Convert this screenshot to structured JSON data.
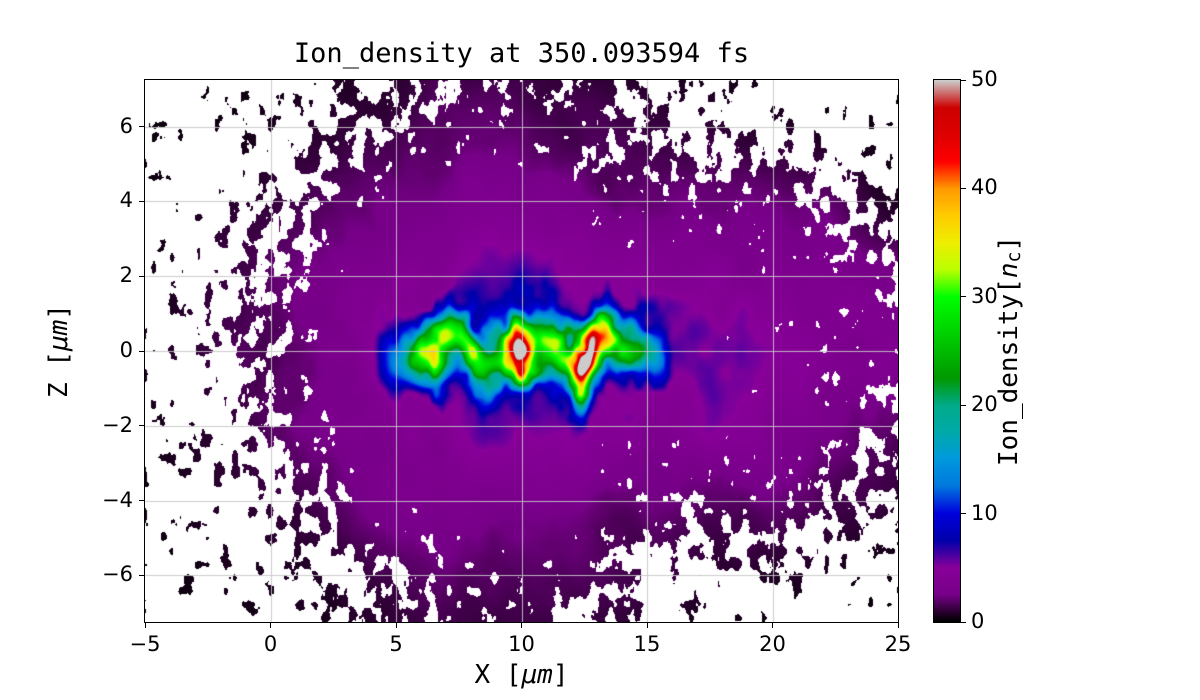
{
  "figure": {
    "title": "Ion_density at 350.093594 fs",
    "background_color": "#ffffff"
  },
  "axes": {
    "xlabel": {
      "pre": "X [",
      "mu": "μm",
      "post": "]"
    },
    "ylabel": {
      "pre": "Z [",
      "mu": "μm",
      "post": "]"
    }
  },
  "colorbar": {
    "label": {
      "pre": "Ion_density[",
      "var": "n",
      "sub": "c",
      "post": "]"
    },
    "min": 0,
    "max": 50,
    "ticks": [
      0,
      10,
      20,
      30,
      40,
      50
    ]
  },
  "chart_data": {
    "type": "heatmap",
    "title": "Ion_density at 350.093594 fs",
    "xlabel": "X [μm]",
    "ylabel": "Z [μm]",
    "colorbar_label": "Ion_density[n_c]",
    "xlim": [
      -5,
      25
    ],
    "ylim": [
      -7.25,
      7.25
    ],
    "xticks": [
      -5,
      0,
      5,
      10,
      15,
      20,
      25
    ],
    "yticks": [
      -6,
      -4,
      -2,
      0,
      2,
      4,
      6
    ],
    "grid": true,
    "grid_color": "#c8c8c8",
    "vmin": 0,
    "vmax": 50,
    "colormap": "nipy_spectral",
    "colormap_rgb": [
      [
        0,
        0,
        0
      ],
      [
        0.4667,
        0,
        0.5333
      ],
      [
        0.5333,
        0,
        0.6
      ],
      [
        0,
        0,
        0.6667
      ],
      [
        0,
        0,
        0.8667
      ],
      [
        0,
        0.4667,
        0.8667
      ],
      [
        0,
        0.6,
        0.8667
      ],
      [
        0,
        0.6667,
        0.6667
      ],
      [
        0,
        0.6667,
        0.5333
      ],
      [
        0,
        0.6,
        0
      ],
      [
        0,
        0.7333,
        0
      ],
      [
        0,
        0.8667,
        0
      ],
      [
        0,
        1,
        0
      ],
      [
        0.7333,
        1,
        0
      ],
      [
        0.9333,
        0.9333,
        0
      ],
      [
        1,
        0.8,
        0
      ],
      [
        1,
        0.6,
        0
      ],
      [
        1,
        0,
        0
      ],
      [
        0.8667,
        0,
        0
      ],
      [
        0.8,
        0,
        0
      ],
      [
        0.8,
        0.8,
        0.8
      ]
    ],
    "description": "Speckled 2D ion-density map: a wiggly dense filament along z≈0 between x≈4 and x≈16 whose hot spots reach the top of the 50 n_c scale (red/grey cores near x≈10 and x≈12.5, surrounded by yellow-green-cyan-blue halos), embedded in a purple plasma cloud (≈3-6 n_c) spanning x≈3-16 and |z|<4, a purple band extending right to x=25 around z=0, dark speckled columns reaching the top and bottom edges near the middle, dark arms on the right at |z|≈3-5, and sparse black speckles on white background toward the left and the corners.",
    "features": {
      "masked_color": "#ffffff",
      "central_cloud": {
        "cx": 9.0,
        "sigma_x": 6.0,
        "sigma_z": 3.5,
        "coverage_sigma_x": 5.0,
        "peak": 5.2,
        "coverage": 1.45
      },
      "right_band": {
        "sigma_z": 1.8,
        "x_onset": 13.0,
        "onset_width": 4.0,
        "peak": 3.0,
        "coverage": 0.8
      },
      "vertical_columns": {
        "cx": 9.0,
        "sigma_x": 4.5,
        "peak": 0.5,
        "coverage": 0.55
      },
      "right_arms": {
        "cx": 20.5,
        "sigma_x": 3.0,
        "z_center": 3.4,
        "sigma_z": 1.5,
        "peak": 1.4,
        "coverage": 0.65
      },
      "left_speckles": {
        "cx": 1.5,
        "sigma_x": 2.5,
        "sigma_z": 3.0,
        "coverage": 0.25
      },
      "base_coverage": 0.04,
      "filament": {
        "x_start": 3.8,
        "x_end": 16.2,
        "core_sigma_z": 0.45,
        "wiggle": [
          [
            1.9,
            0.25,
            0.5
          ],
          [
            3.3,
            0.18,
            2.1
          ]
        ],
        "bumps": [
          [
            5.0,
            8
          ],
          [
            5.8,
            14
          ],
          [
            6.5,
            24
          ],
          [
            7.2,
            15
          ],
          [
            8.0,
            22
          ],
          [
            8.8,
            14
          ],
          [
            9.8,
            46
          ],
          [
            10.6,
            16
          ],
          [
            11.4,
            20
          ],
          [
            12.4,
            52
          ],
          [
            13.2,
            28
          ],
          [
            14.0,
            18
          ],
          [
            14.8,
            12
          ],
          [
            15.5,
            7
          ]
        ]
      },
      "noise": {
        "speckle_scale": 2.8,
        "speckle_seed": 7,
        "smooth_scale": 0.45,
        "smooth_seed": 13,
        "fine_scale": 1.6,
        "fine_seed": 21
      }
    }
  }
}
